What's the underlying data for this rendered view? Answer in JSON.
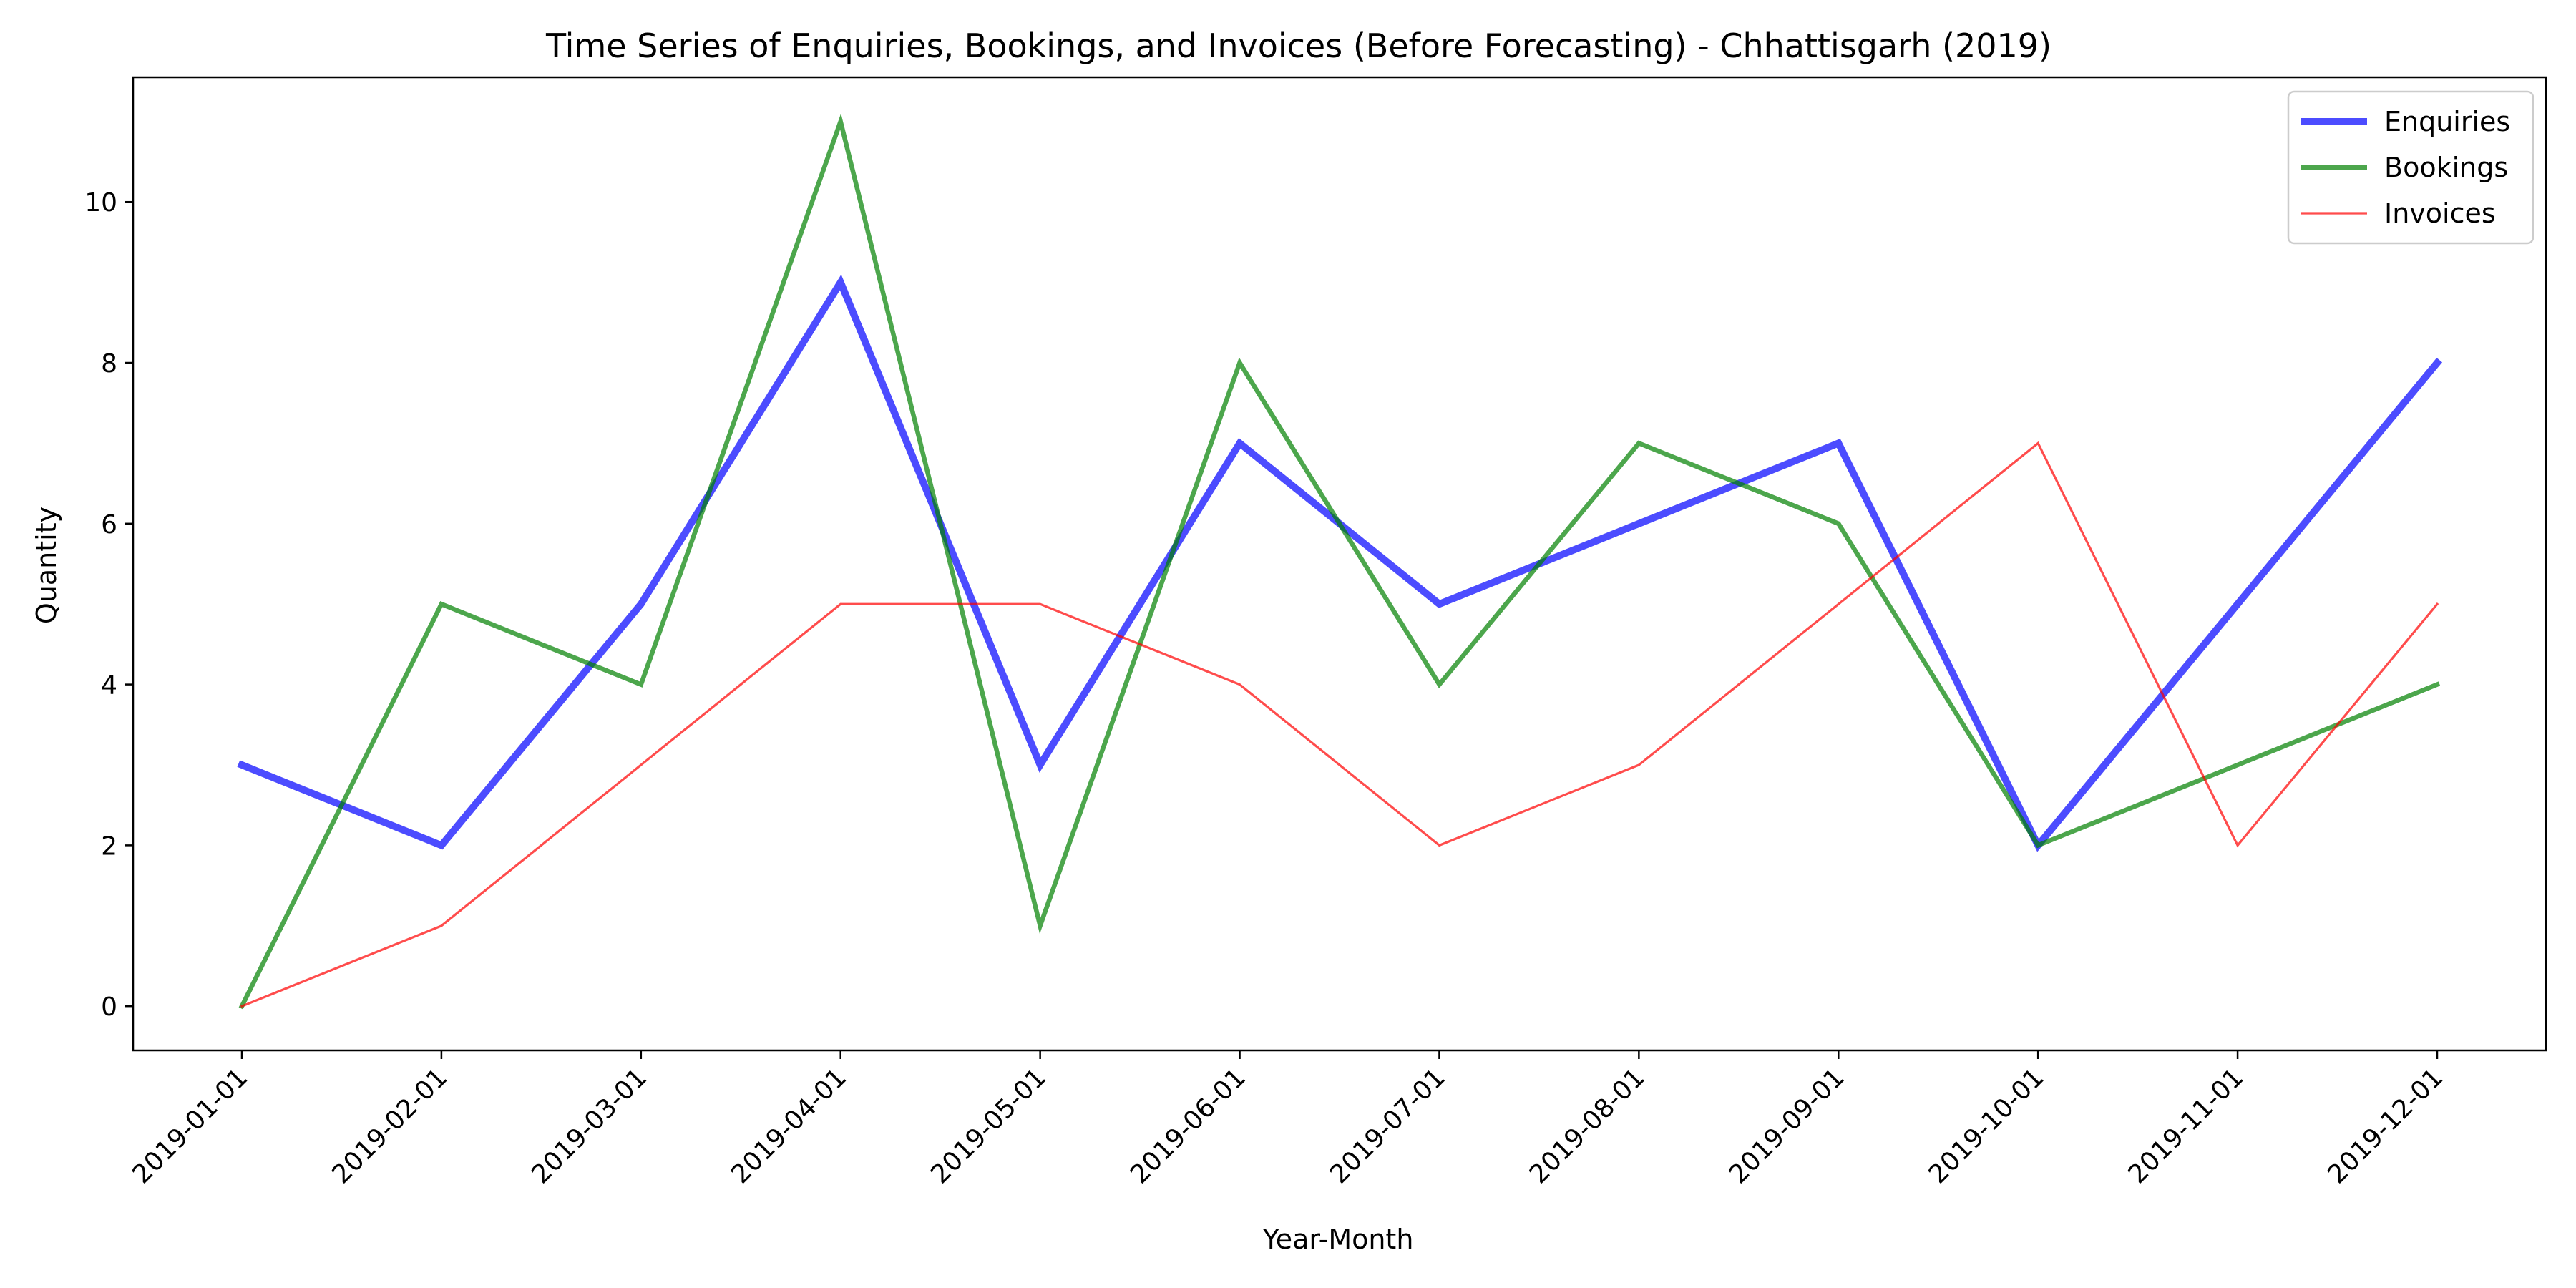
{
  "chart_data": {
    "type": "line",
    "title": "Time Series of Enquiries, Bookings, and Invoices (Before Forecasting) - Chhattisgarh (2019)",
    "xlabel": "Year-Month",
    "ylabel": "Quantity",
    "x": [
      "2019-01-01",
      "2019-02-01",
      "2019-03-01",
      "2019-04-01",
      "2019-05-01",
      "2019-06-01",
      "2019-07-01",
      "2019-08-01",
      "2019-09-01",
      "2019-10-01",
      "2019-11-01",
      "2019-12-01"
    ],
    "ylim": [
      -0.55,
      11.55
    ],
    "yticks": [
      0,
      2,
      4,
      6,
      8,
      10
    ],
    "grid": false,
    "legend_position": "top-right",
    "series": [
      {
        "name": "Enquiries",
        "color": "#0000ff",
        "values": [
          3,
          2,
          5,
          9,
          3,
          7,
          5,
          6,
          7,
          2,
          5,
          8
        ]
      },
      {
        "name": "Bookings",
        "color": "#008000",
        "values": [
          0,
          5,
          4,
          11,
          1,
          8,
          4,
          7,
          6,
          2,
          3,
          4
        ]
      },
      {
        "name": "Invoices",
        "color": "#ff0000",
        "values": [
          0,
          1,
          3,
          5,
          5,
          4,
          2,
          3,
          5,
          7,
          2,
          5
        ]
      }
    ]
  }
}
